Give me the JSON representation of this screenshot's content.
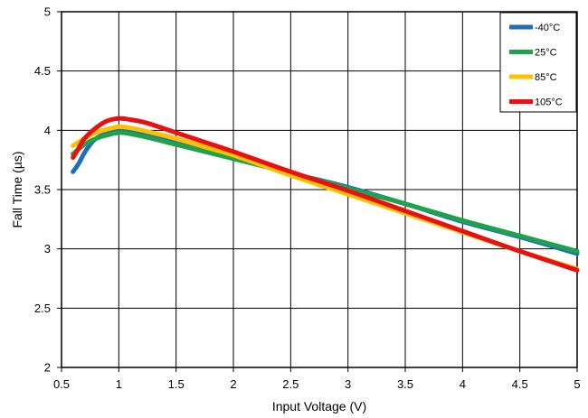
{
  "chart_data": {
    "type": "line",
    "title": "",
    "xlabel": "Input Voltage (V)",
    "ylabel": "Fall Time (µs)",
    "xlim": [
      0.5,
      5
    ],
    "ylim": [
      2,
      5
    ],
    "x_ticks": [
      "0.5",
      "1",
      "1.5",
      "2",
      "2.5",
      "3",
      "3.5",
      "4",
      "4.5",
      "5"
    ],
    "y_ticks": [
      "2",
      "2.5",
      "3",
      "3.5",
      "4",
      "4.5",
      "5"
    ],
    "grid": true,
    "legend_position": "top-right",
    "series": [
      {
        "name": "-40°C",
        "color": "#1F6FB8",
        "x": [
          0.6,
          0.65,
          0.7,
          0.75,
          0.8,
          0.9,
          1.0,
          1.1,
          1.25,
          1.5,
          1.75,
          2.0,
          2.5,
          3.0,
          3.5,
          4.0,
          4.5,
          5.0
        ],
        "y": [
          3.65,
          3.72,
          3.81,
          3.88,
          3.93,
          3.98,
          4.0,
          3.99,
          3.96,
          3.9,
          3.83,
          3.77,
          3.64,
          3.52,
          3.38,
          3.23,
          3.1,
          2.96
        ]
      },
      {
        "name": "25°C",
        "color": "#1FA34A",
        "x": [
          0.6,
          0.7,
          0.8,
          0.9,
          1.0,
          1.1,
          1.25,
          1.5,
          1.75,
          2.0,
          2.5,
          3.0,
          3.5,
          4.0,
          4.5,
          5.0
        ],
        "y": [
          3.8,
          3.88,
          3.93,
          3.96,
          3.98,
          3.97,
          3.94,
          3.88,
          3.82,
          3.76,
          3.64,
          3.51,
          3.38,
          3.24,
          3.11,
          2.98
        ]
      },
      {
        "name": "85°C",
        "color": "#FFC000",
        "x": [
          0.6,
          0.7,
          0.8,
          0.9,
          1.0,
          1.1,
          1.25,
          1.5,
          1.75,
          2.0,
          2.5,
          3.0,
          3.5,
          4.0,
          4.5,
          5.0
        ],
        "y": [
          3.87,
          3.93,
          3.98,
          4.01,
          4.03,
          4.02,
          3.99,
          3.93,
          3.86,
          3.79,
          3.62,
          3.46,
          3.3,
          3.14,
          2.98,
          2.83
        ]
      },
      {
        "name": "105°C",
        "color": "#E81010",
        "x": [
          0.6,
          0.65,
          0.7,
          0.8,
          0.9,
          1.0,
          1.1,
          1.25,
          1.5,
          1.75,
          2.0,
          2.5,
          3.0,
          3.5,
          4.0,
          4.5,
          5.0
        ],
        "y": [
          3.77,
          3.85,
          3.93,
          4.02,
          4.08,
          4.1,
          4.09,
          4.06,
          3.98,
          3.9,
          3.82,
          3.65,
          3.49,
          3.32,
          3.15,
          2.98,
          2.82
        ]
      }
    ]
  }
}
